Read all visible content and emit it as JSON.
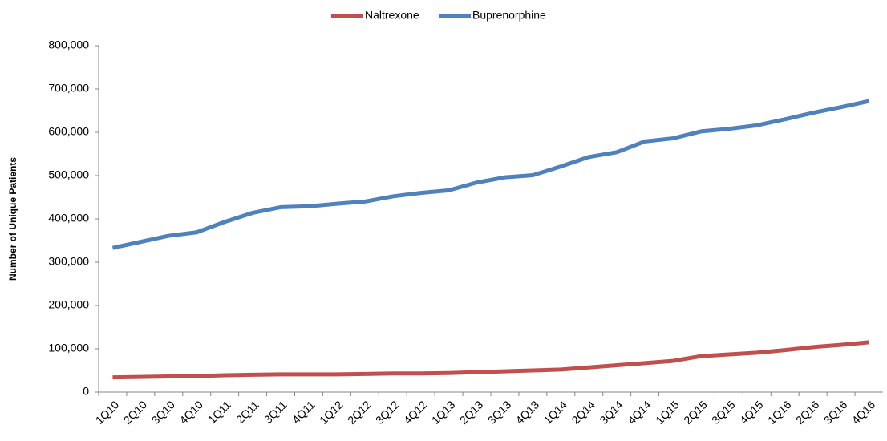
{
  "chart_data": {
    "type": "line",
    "y_label": "Number of Unique Patients",
    "categories": [
      "1Q10",
      "2Q10",
      "3Q10",
      "4Q10",
      "1Q11",
      "2Q11",
      "3Q11",
      "4Q11",
      "1Q12",
      "2Q12",
      "3Q12",
      "4Q12",
      "1Q13",
      "2Q13",
      "3Q13",
      "4Q13",
      "1Q14",
      "2Q14",
      "3Q14",
      "4Q14",
      "1Q15",
      "2Q15",
      "3Q15",
      "4Q15",
      "1Q16",
      "2Q16",
      "3Q16",
      "4Q16"
    ],
    "series": [
      {
        "name": "Naltrexone",
        "color": "#c0504d",
        "values": [
          34000,
          35000,
          36000,
          37000,
          39000,
          40000,
          41000,
          41000,
          41000,
          42000,
          43000,
          43000,
          44000,
          46000,
          48000,
          50000,
          52000,
          57000,
          62000,
          67000,
          72000,
          83000,
          87000,
          91000,
          97000,
          104000,
          109000,
          115000
        ]
      },
      {
        "name": "Buprenorphine",
        "color": "#4f81bd",
        "values": [
          333000,
          347000,
          361000,
          369000,
          393000,
          414000,
          427000,
          429000,
          435000,
          440000,
          452000,
          460000,
          466000,
          484000,
          496000,
          501000,
          521000,
          543000,
          554000,
          579000,
          586000,
          602000,
          608000,
          616000,
          630000,
          645000,
          658000,
          672000
        ]
      }
    ],
    "ylim": [
      0,
      800000
    ],
    "yticks": [
      0,
      {
        "value": 100000,
        "label": "100,000"
      },
      {
        "value": 200000,
        "label": "200,000"
      },
      {
        "value": 300000,
        "label": "300,000"
      },
      {
        "value": 400000,
        "label": "400,000"
      },
      {
        "value": 500000,
        "label": "500,000"
      },
      {
        "value": 600000,
        "label": "600,000"
      },
      {
        "value": 700000,
        "label": "700,000"
      },
      {
        "value": 800000,
        "label": "800,000"
      }
    ],
    "legend": "top"
  }
}
